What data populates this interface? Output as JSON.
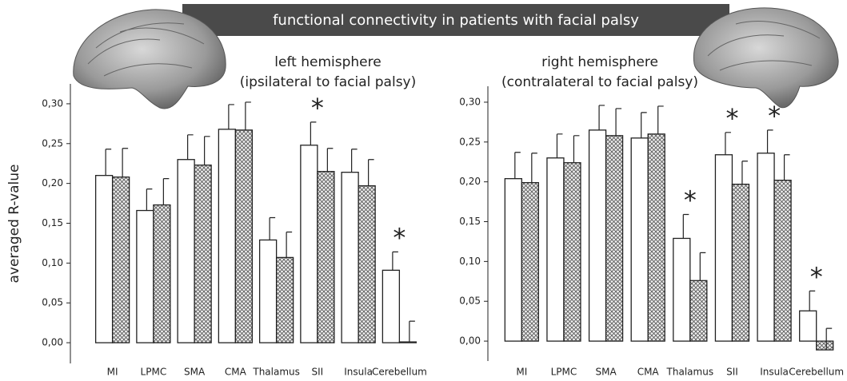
{
  "title": "functional  connectivity in patients with facial palsy",
  "chart_data": [
    {
      "type": "bar",
      "title": [
        "left hemisphere",
        "(ipsilateral to facial palsy)"
      ],
      "y_label": "averaged R-value",
      "categories": [
        "MI",
        "LPMC",
        "SMA",
        "CMA",
        "Thalamus",
        "SII",
        "Insula",
        "Cerebellum"
      ],
      "series": [
        {
          "color": "#ffffff",
          "values": [
            0.21,
            0.166,
            0.23,
            0.268,
            0.129,
            0.248,
            0.214,
            0.091
          ],
          "errors": [
            0.033,
            0.027,
            0.031,
            0.031,
            0.028,
            0.029,
            0.029,
            0.023
          ]
        },
        {
          "color": "#555555",
          "hatch": true,
          "values": [
            0.208,
            0.173,
            0.223,
            0.267,
            0.107,
            0.215,
            0.197,
            0.001
          ],
          "errors": [
            0.036,
            0.033,
            0.036,
            0.035,
            0.032,
            0.029,
            0.033,
            0.026
          ]
        }
      ],
      "annotations": [
        {
          "text": "*",
          "category": "SII"
        },
        {
          "text": "*",
          "category": "Cerebellum"
        }
      ],
      "ylim": [
        -0.026,
        0.325
      ],
      "yticks": [
        {
          "value": 0,
          "label": "0,00"
        },
        {
          "value": 0.05,
          "label": "0,05"
        },
        {
          "value": 0.1,
          "label": "0,10"
        },
        {
          "value": 0.15,
          "label": "0,15"
        },
        {
          "value": 0.2,
          "label": "0,20"
        },
        {
          "value": 0.25,
          "label": "0,25"
        },
        {
          "value": 0.3,
          "label": "0,30"
        }
      ]
    },
    {
      "type": "bar",
      "title": [
        "right hemisphere",
        "(contralateral to facial palsy)"
      ],
      "categories": [
        "MI",
        "LPMC",
        "SMA",
        "CMA",
        "Thalamus",
        "SII",
        "Insula",
        "Cerebellum"
      ],
      "series": [
        {
          "color": "#ffffff",
          "values": [
            0.204,
            0.23,
            0.265,
            0.255,
            0.129,
            0.234,
            0.236,
            0.038
          ],
          "errors": [
            0.033,
            0.03,
            0.031,
            0.032,
            0.03,
            0.028,
            0.029,
            0.025
          ]
        },
        {
          "color": "#555555",
          "hatch": true,
          "values": [
            0.199,
            0.224,
            0.258,
            0.26,
            0.076,
            0.197,
            0.202,
            -0.011
          ],
          "errors": [
            0.037,
            0.034,
            0.034,
            0.035,
            0.035,
            0.029,
            0.032,
            0.027
          ]
        }
      ],
      "annotations": [
        {
          "text": "*",
          "category": "Thalamus"
        },
        {
          "text": "*",
          "category": "SII"
        },
        {
          "text": "*",
          "category": "Insula"
        },
        {
          "text": "*",
          "category": "Cerebellum"
        }
      ],
      "ylim": [
        -0.025,
        0.32
      ],
      "yticks": [
        {
          "value": 0,
          "label": "0,00"
        },
        {
          "value": 0.05,
          "label": "0,05"
        },
        {
          "value": 0.1,
          "label": "0,10"
        },
        {
          "value": 0.15,
          "label": "0,15"
        },
        {
          "value": 0.2,
          "label": "0,20"
        },
        {
          "value": 0.25,
          "label": "0,25"
        },
        {
          "value": 0.3,
          "label": "0,30"
        }
      ]
    }
  ]
}
